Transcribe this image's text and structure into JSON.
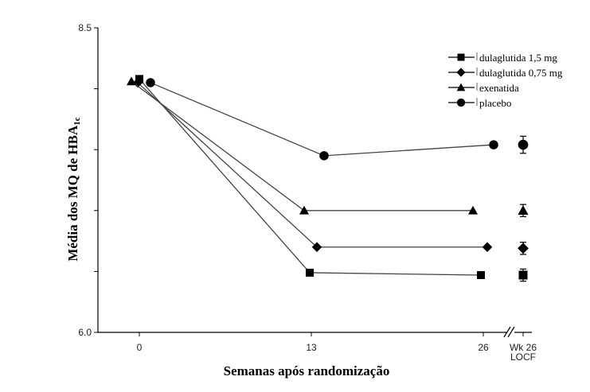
{
  "chart_data": {
    "type": "line",
    "xlabel": "Semanas após randomização",
    "ylabel_main": "Média dos MQ de HBA",
    "ylabel_sub": "1c",
    "ylim": [
      6.0,
      8.5
    ],
    "y_tick_labels": [
      {
        "value": 8.5,
        "label": "8.5"
      },
      {
        "value": 6.0,
        "label": "6.0"
      }
    ],
    "x_ticks": [
      {
        "value": 0,
        "label": "0"
      },
      {
        "value": 13,
        "label": "13"
      },
      {
        "value": 26,
        "label": "26"
      }
    ],
    "locf_label_line1": "Wk 26",
    "locf_label_line2": "LOCF",
    "legend_position": "top-right",
    "series": [
      {
        "name": "dulaglutida 1,5 mg",
        "marker": "square",
        "x": [
          0,
          13,
          26
        ],
        "y": [
          8.08,
          6.49,
          6.47
        ],
        "locf": {
          "y": 6.47,
          "err": 0.05
        }
      },
      {
        "name": "dulaglutida 0,75 mg",
        "marker": "diamond",
        "x": [
          0,
          13,
          26
        ],
        "y": [
          8.05,
          6.7,
          6.7
        ],
        "locf": {
          "y": 6.69,
          "err": 0.05
        }
      },
      {
        "name": "exenatida",
        "marker": "triangle",
        "x": [
          0,
          13,
          26
        ],
        "y": [
          8.06,
          7.0,
          7.0
        ],
        "locf": {
          "y": 7.0,
          "err": 0.05
        }
      },
      {
        "name": "placebo",
        "marker": "circle",
        "x": [
          0,
          13,
          26
        ],
        "y": [
          8.05,
          7.45,
          7.54
        ],
        "locf": {
          "y": 7.54,
          "err": 0.07
        }
      }
    ]
  }
}
